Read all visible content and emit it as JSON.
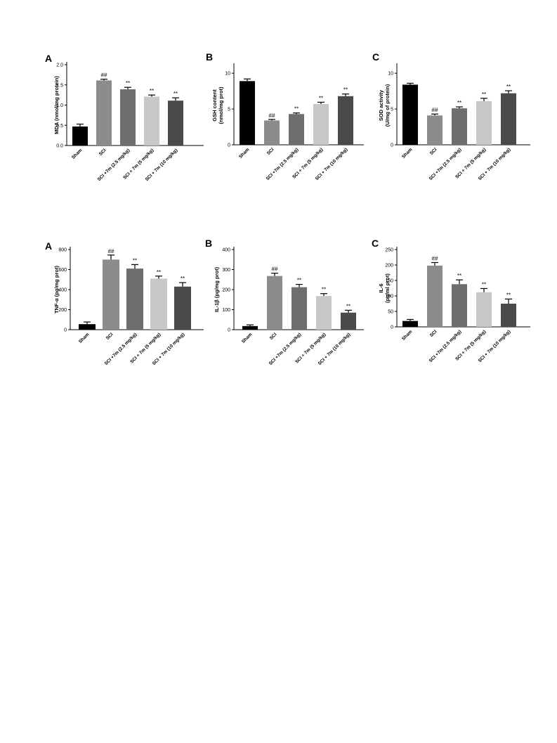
{
  "chart_data": [
    {
      "type": "bar",
      "panel": "A",
      "ylabel": "MDA (nmol/mg protein)",
      "categories": [
        "Sham",
        "SCI",
        "SCI +7m (2.5 mg/kg)",
        "SCI + 7m (5 mg/kg)",
        "SCI + 7m (10 mg/kg)"
      ],
      "values": [
        0.47,
        1.61,
        1.39,
        1.21,
        1.11
      ],
      "errors": [
        0.06,
        0.03,
        0.05,
        0.04,
        0.07
      ],
      "significance": [
        "",
        "##",
        "**",
        "**",
        "**"
      ],
      "colors": [
        "#000000",
        "#8c8c8c",
        "#6e6e6e",
        "#c8c8c8",
        "#4a4a4a"
      ],
      "ylim": [
        0,
        2.0
      ],
      "yticks": [
        0,
        0.5,
        1.0,
        1.5,
        2.0
      ],
      "ytick_labels": [
        "0.0",
        "0.5",
        "1.0",
        "1.5",
        "2.0"
      ],
      "grid": false
    },
    {
      "type": "bar",
      "panel": "B",
      "ylabel": [
        "GSH content",
        "(nmol/mg prot)"
      ],
      "categories": [
        "Sham",
        "SCI",
        "SCI +7m (2.5 mg/kg)",
        "SCI + 7m (5 mg/kg)",
        "SCI + 7m (10 mg/kg)"
      ],
      "values": [
        8.9,
        3.4,
        4.3,
        5.7,
        6.8
      ],
      "errors": [
        0.3,
        0.15,
        0.15,
        0.25,
        0.3
      ],
      "significance": [
        "",
        "##",
        "**",
        "**",
        "**"
      ],
      "colors": [
        "#000000",
        "#8c8c8c",
        "#6e6e6e",
        "#c8c8c8",
        "#4a4a4a"
      ],
      "ylim": [
        0,
        11
      ],
      "yticks": [
        0,
        5,
        10
      ],
      "ytick_labels": [
        "0",
        "5",
        "10"
      ],
      "grid": false
    },
    {
      "type": "bar",
      "panel": "C",
      "ylabel": [
        "SOD activity",
        "(U/mg of protein)"
      ],
      "categories": [
        "Sham",
        "SCI",
        "SCI +7m (2.5 mg/kg)",
        "SCI + 7m (5 mg/kg)",
        "SCI + 7m (10 mg/kg)"
      ],
      "values": [
        8.4,
        4.1,
        5.1,
        6.1,
        7.2
      ],
      "errors": [
        0.2,
        0.2,
        0.2,
        0.4,
        0.35
      ],
      "significance": [
        "",
        "##",
        "**",
        "**",
        "**"
      ],
      "colors": [
        "#000000",
        "#8c8c8c",
        "#6e6e6e",
        "#c8c8c8",
        "#4a4a4a"
      ],
      "ylim": [
        0,
        11
      ],
      "yticks": [
        0,
        5,
        10
      ],
      "ytick_labels": [
        "0",
        "5",
        "10"
      ],
      "grid": false
    },
    {
      "type": "bar",
      "panel": "A",
      "ylabel": "TNF-α (pg/mg prot)",
      "categories": [
        "Sham",
        "SCI",
        "SCI +7m (2.5 mg/kg)",
        "SCI + 7m (5 mg/kg)",
        "SCI + 7m (10 mg/kg)"
      ],
      "values": [
        55,
        700,
        610,
        510,
        430
      ],
      "errors": [
        22,
        45,
        40,
        25,
        40
      ],
      "significance": [
        "",
        "##",
        "**",
        "**",
        "**"
      ],
      "colors": [
        "#000000",
        "#8c8c8c",
        "#6e6e6e",
        "#c8c8c8",
        "#4a4a4a"
      ],
      "ylim": [
        0,
        800
      ],
      "yticks": [
        0,
        200,
        400,
        600,
        800
      ],
      "ytick_labels": [
        "0",
        "200",
        "400",
        "600",
        "800"
      ],
      "grid": false
    },
    {
      "type": "bar",
      "panel": "B",
      "ylabel": "IL-1β (pg/mg prot)",
      "categories": [
        "Sham",
        "SCI",
        "SCI +7m (2.5 mg/kg)",
        "SCI + 7m (5 mg/kg)",
        "SCI + 7m (10 mg/kg)"
      ],
      "values": [
        18,
        268,
        212,
        168,
        85
      ],
      "errors": [
        6,
        14,
        14,
        12,
        12
      ],
      "significance": [
        "",
        "##",
        "**",
        "**",
        "**"
      ],
      "colors": [
        "#000000",
        "#8c8c8c",
        "#6e6e6e",
        "#c8c8c8",
        "#4a4a4a"
      ],
      "ylim": [
        0,
        400
      ],
      "yticks": [
        0,
        100,
        200,
        300,
        400
      ],
      "ytick_labels": [
        "0",
        "100",
        "200",
        "300",
        "400"
      ],
      "grid": false
    },
    {
      "type": "bar",
      "panel": "C",
      "ylabel": [
        "IL-6",
        "(pg/ml prot)"
      ],
      "categories": [
        "Sham",
        "SCI",
        "SCI +7m (2.5 mg/kg)",
        "SCI + 7m (5 mg/kg)",
        "SCI + 7m (10 mg/kg)"
      ],
      "values": [
        19,
        198,
        138,
        112,
        75
      ],
      "errors": [
        5,
        10,
        14,
        12,
        15
      ],
      "significance": [
        "",
        "##",
        "**",
        "**",
        "**"
      ],
      "colors": [
        "#000000",
        "#8c8c8c",
        "#6e6e6e",
        "#c8c8c8",
        "#4a4a4a"
      ],
      "ylim": [
        0,
        250
      ],
      "yticks": [
        0,
        50,
        100,
        150,
        200,
        250
      ],
      "ytick_labels": [
        "0",
        "50",
        "100",
        "150",
        "200",
        "250"
      ],
      "grid": false
    }
  ]
}
